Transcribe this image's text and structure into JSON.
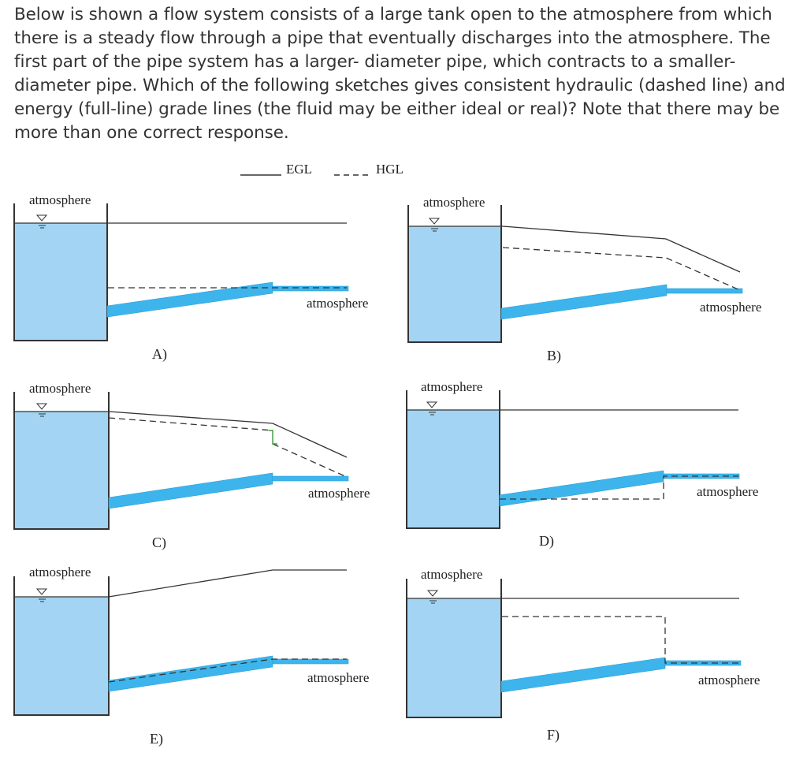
{
  "question": "Below is shown a flow system consists of a large tank open to the atmosphere from which there is a steady flow through a pipe that eventually discharges into the atmosphere.  The first part of the pipe system has a larger- diameter pipe, which contracts to a smaller-diameter pipe.  Which of the following sketches gives consistent hydraulic (dashed line) and energy (full-line)  grade lines (the fluid may be either ideal or real)?  Note that there may be more than one correct response.",
  "legend": {
    "egl": "EGL",
    "hgl": "HGL"
  },
  "colors": {
    "water": "#a3d4f3",
    "pipe": "#3db5ec",
    "line": "#333333"
  },
  "panels": [
    {
      "label": "A)",
      "tank_label": "atmosphere",
      "outlet_label": "atmosphere"
    },
    {
      "label": "B)",
      "tank_label": "atmosphere",
      "outlet_label": "atmosphere"
    },
    {
      "label": "C)",
      "tank_label": "atmosphere",
      "outlet_label": "atmosphere"
    },
    {
      "label": "D)",
      "tank_label": "atmosphere",
      "outlet_label": "atmosphere"
    },
    {
      "label": "E)",
      "tank_label": "atmosphere",
      "outlet_label": "atmosphere"
    },
    {
      "label": "F)",
      "tank_label": "atmosphere",
      "outlet_label": "atmosphere"
    }
  ]
}
